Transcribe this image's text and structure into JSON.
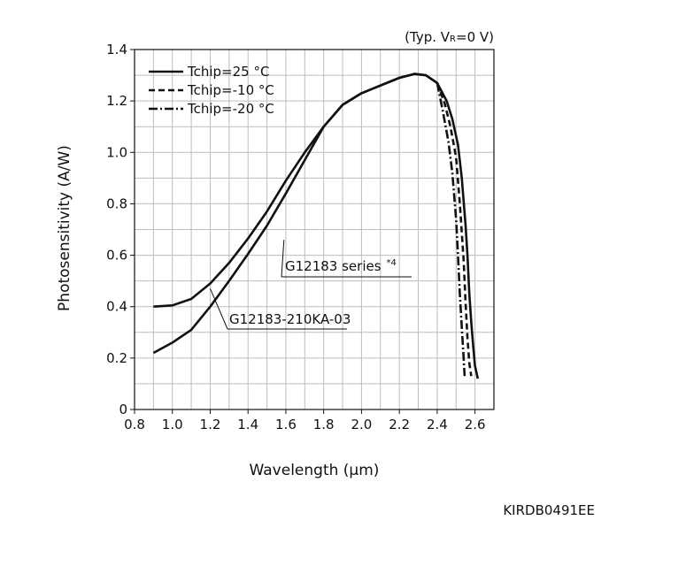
{
  "chart_data": {
    "type": "line",
    "title": "",
    "condition_note_prefix": "(Typ. V",
    "condition_note_sub": "R",
    "condition_note_suffix": "=0 V)",
    "xlabel": "Wavelength (μm)",
    "ylabel": "Photosensitivity (A/W)",
    "xlim": [
      0.8,
      2.7
    ],
    "ylim": [
      0,
      1.4
    ],
    "x_ticks": [
      "0.8",
      "1.0",
      "1.2",
      "1.4",
      "1.6",
      "1.8",
      "2.0",
      "2.2",
      "2.4",
      "2.6"
    ],
    "y_ticks": [
      "0",
      "0.2",
      "0.4",
      "0.6",
      "0.8",
      "1.0",
      "1.2",
      "1.4"
    ],
    "grid": true,
    "legend_position": "top-left",
    "legend": [
      {
        "label": "Tchip=25 °C",
        "style": "solid"
      },
      {
        "label": "Tchip=-10 °C",
        "style": "dashed"
      },
      {
        "label": "Tchip=-20 °C",
        "style": "dash-dot"
      }
    ],
    "annotations": [
      {
        "label": "G12183 series",
        "superscript": "*4"
      },
      {
        "label": "G12183-210KA-03"
      }
    ],
    "series": [
      {
        "name": "G12183 series",
        "style": "solid",
        "points": [
          [
            0.9,
            0.4
          ],
          [
            1.0,
            0.405
          ],
          [
            1.1,
            0.43
          ],
          [
            1.2,
            0.49
          ],
          [
            1.3,
            0.57
          ],
          [
            1.4,
            0.665
          ],
          [
            1.5,
            0.77
          ],
          [
            1.6,
            0.89
          ],
          [
            1.7,
            1.0
          ],
          [
            1.8,
            1.1
          ],
          [
            1.9,
            1.185
          ],
          [
            2.0,
            1.23
          ],
          [
            2.1,
            1.26
          ],
          [
            2.2,
            1.29
          ],
          [
            2.28,
            1.305
          ],
          [
            2.34,
            1.3
          ],
          [
            2.4,
            1.27
          ],
          [
            2.45,
            1.2
          ],
          [
            2.48,
            1.13
          ],
          [
            2.51,
            1.03
          ],
          [
            2.53,
            0.9
          ],
          [
            2.55,
            0.72
          ],
          [
            2.56,
            0.6
          ],
          [
            2.57,
            0.45
          ],
          [
            2.58,
            0.34
          ],
          [
            2.59,
            0.25
          ],
          [
            2.6,
            0.17
          ],
          [
            2.615,
            0.12
          ]
        ]
      },
      {
        "name": "G12183-210KA-03",
        "style": "solid",
        "points": [
          [
            0.9,
            0.22
          ],
          [
            1.0,
            0.26
          ],
          [
            1.1,
            0.31
          ],
          [
            1.2,
            0.4
          ],
          [
            1.3,
            0.5
          ],
          [
            1.4,
            0.605
          ],
          [
            1.5,
            0.715
          ],
          [
            1.6,
            0.84
          ],
          [
            1.7,
            0.97
          ],
          [
            1.8,
            1.1
          ],
          [
            1.9,
            1.185
          ],
          [
            2.0,
            1.23
          ],
          [
            2.1,
            1.26
          ],
          [
            2.2,
            1.29
          ],
          [
            2.28,
            1.305
          ],
          [
            2.34,
            1.3
          ],
          [
            2.4,
            1.27
          ]
        ]
      },
      {
        "name": "Tchip=-10 °C",
        "style": "dashed",
        "points": [
          [
            2.4,
            1.27
          ],
          [
            2.44,
            1.19
          ],
          [
            2.47,
            1.1
          ],
          [
            2.5,
            0.98
          ],
          [
            2.52,
            0.8
          ],
          [
            2.54,
            0.58
          ],
          [
            2.55,
            0.42
          ],
          [
            2.56,
            0.28
          ],
          [
            2.57,
            0.18
          ],
          [
            2.58,
            0.13
          ]
        ]
      },
      {
        "name": "Tchip=-20 °C",
        "style": "dash-dot",
        "points": [
          [
            2.4,
            1.27
          ],
          [
            2.43,
            1.16
          ],
          [
            2.46,
            1.04
          ],
          [
            2.48,
            0.92
          ],
          [
            2.5,
            0.74
          ],
          [
            2.51,
            0.6
          ],
          [
            2.52,
            0.45
          ],
          [
            2.53,
            0.32
          ],
          [
            2.54,
            0.2
          ],
          [
            2.545,
            0.13
          ]
        ]
      }
    ]
  },
  "document_code": "KIRDB0491EE"
}
